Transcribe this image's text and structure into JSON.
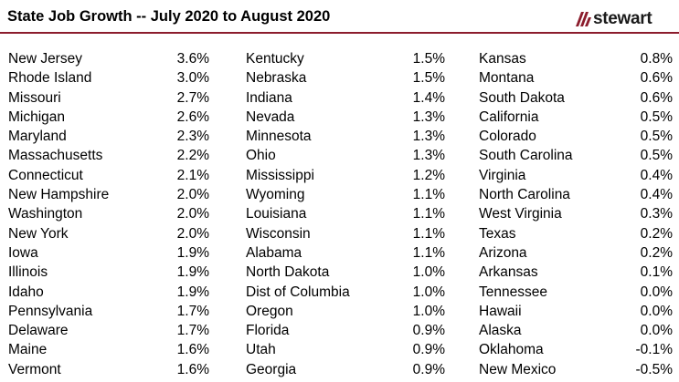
{
  "header": {
    "title": "State Job Growth -- July 2020 to August 2020",
    "logo_text": "stewart",
    "rule_color": "#8c1d2d",
    "logo_color": "#8c1d2d"
  },
  "columns": [
    {
      "rows": [
        {
          "state": "New Jersey",
          "value": "3.6%"
        },
        {
          "state": "Rhode Island",
          "value": "3.0%"
        },
        {
          "state": "Missouri",
          "value": "2.7%"
        },
        {
          "state": "Michigan",
          "value": "2.6%"
        },
        {
          "state": "Maryland",
          "value": "2.3%"
        },
        {
          "state": "Massachusetts",
          "value": "2.2%"
        },
        {
          "state": "Connecticut",
          "value": "2.1%"
        },
        {
          "state": "New Hampshire",
          "value": "2.0%"
        },
        {
          "state": "Washington",
          "value": "2.0%"
        },
        {
          "state": "New York",
          "value": "2.0%"
        },
        {
          "state": "Iowa",
          "value": "1.9%"
        },
        {
          "state": "Illinois",
          "value": "1.9%"
        },
        {
          "state": "Idaho",
          "value": "1.9%"
        },
        {
          "state": "Pennsylvania",
          "value": "1.7%"
        },
        {
          "state": "Delaware",
          "value": "1.7%"
        },
        {
          "state": "Maine",
          "value": "1.6%"
        },
        {
          "state": "Vermont",
          "value": "1.6%"
        }
      ]
    },
    {
      "rows": [
        {
          "state": "Kentucky",
          "value": "1.5%"
        },
        {
          "state": "Nebraska",
          "value": "1.5%"
        },
        {
          "state": "Indiana",
          "value": "1.4%"
        },
        {
          "state": "Nevada",
          "value": "1.3%"
        },
        {
          "state": "Minnesota",
          "value": "1.3%"
        },
        {
          "state": "Ohio",
          "value": "1.3%"
        },
        {
          "state": "Mississippi",
          "value": "1.2%"
        },
        {
          "state": "Wyoming",
          "value": "1.1%"
        },
        {
          "state": "Louisiana",
          "value": "1.1%"
        },
        {
          "state": "Wisconsin",
          "value": "1.1%"
        },
        {
          "state": "Alabama",
          "value": "1.1%"
        },
        {
          "state": "North Dakota",
          "value": "1.0%"
        },
        {
          "state": "Dist of Columbia",
          "value": "1.0%"
        },
        {
          "state": "Oregon",
          "value": "1.0%"
        },
        {
          "state": "Florida",
          "value": "0.9%"
        },
        {
          "state": "Utah",
          "value": "0.9%"
        },
        {
          "state": "Georgia",
          "value": "0.9%"
        }
      ]
    },
    {
      "rows": [
        {
          "state": "Kansas",
          "value": "0.8%"
        },
        {
          "state": "Montana",
          "value": "0.6%"
        },
        {
          "state": "South Dakota",
          "value": "0.6%"
        },
        {
          "state": "California",
          "value": "0.5%"
        },
        {
          "state": "Colorado",
          "value": "0.5%"
        },
        {
          "state": "South Carolina",
          "value": "0.5%"
        },
        {
          "state": "Virginia",
          "value": "0.4%"
        },
        {
          "state": "North Carolina",
          "value": "0.4%"
        },
        {
          "state": "West Virginia",
          "value": "0.3%"
        },
        {
          "state": "Texas",
          "value": "0.2%"
        },
        {
          "state": "Arizona",
          "value": "0.2%"
        },
        {
          "state": "Arkansas",
          "value": "0.1%"
        },
        {
          "state": "Tennessee",
          "value": "0.0%"
        },
        {
          "state": "Hawaii",
          "value": "0.0%"
        },
        {
          "state": "Alaska",
          "value": "0.0%"
        },
        {
          "state": "Oklahoma",
          "value": "-0.1%"
        },
        {
          "state": "New Mexico",
          "value": "-0.5%"
        }
      ]
    }
  ]
}
